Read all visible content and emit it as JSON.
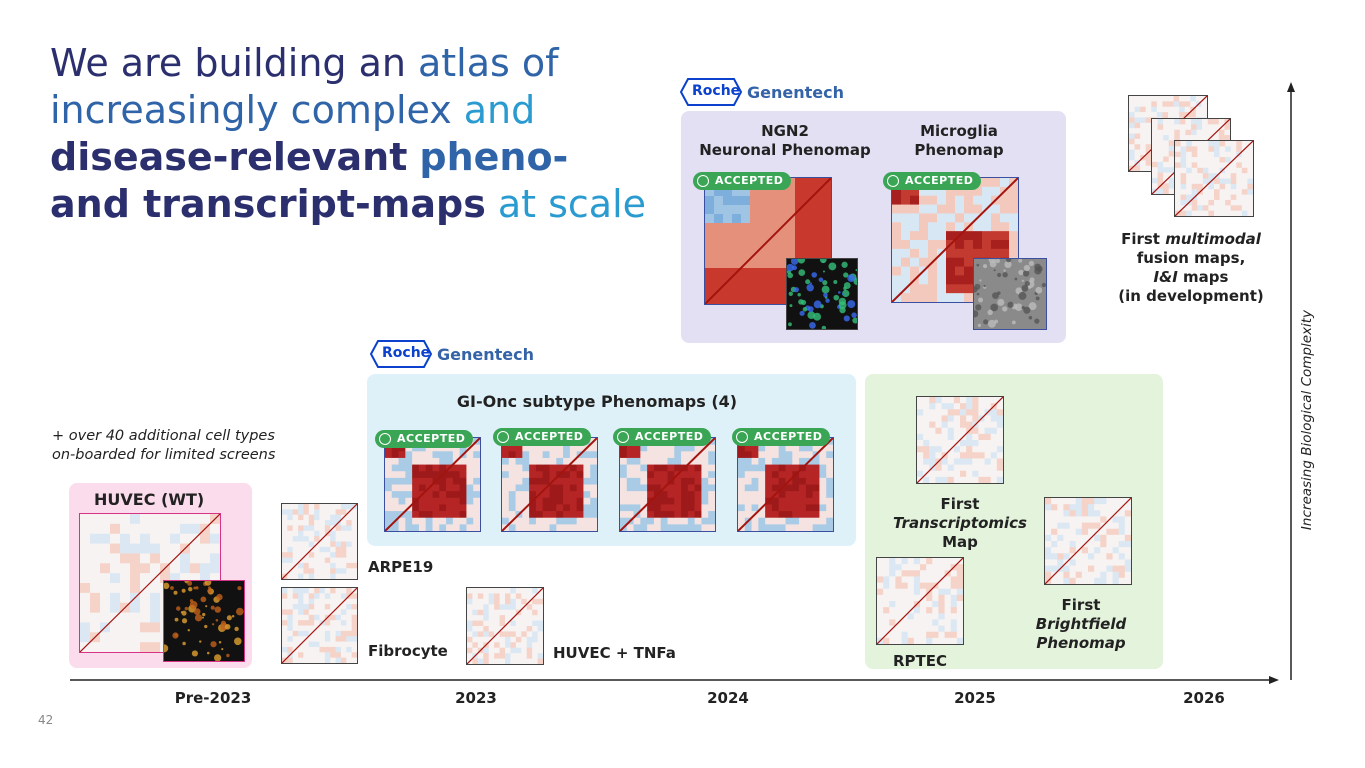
{
  "title": {
    "lines": [
      [
        "We are building an",
        "atlas of"
      ],
      [
        "increasingly complex",
        "and"
      ],
      [
        "disease-relevant",
        "pheno-"
      ],
      [
        "and transcript-maps",
        "at scale"
      ]
    ]
  },
  "note": [
    "+ over 40 additional cell types",
    "on-boarded for limited screens"
  ],
  "logos": [
    {
      "roche": "Roche",
      "genentech": "Genentech"
    },
    {
      "roche": "Roche",
      "genentech": "Genentech"
    }
  ],
  "huvec": {
    "label": "HUVEC (WT)"
  },
  "maps": {
    "arpe19": "ARPE19",
    "fibrocyte": "Fibrocyte",
    "huvec_tnfa": "HUVEC + TNFa"
  },
  "gi_onc": {
    "title": "GI-Onc subtype Phenomaps (4)",
    "badges": [
      "ACCEPTED",
      "ACCEPTED",
      "ACCEPTED",
      "ACCEPTED"
    ]
  },
  "neuro": {
    "ngn2": {
      "lines": [
        "NGN2",
        "Neuronal Phenomap"
      ],
      "badge": "ACCEPTED"
    },
    "microglia": {
      "lines": [
        "Microglia",
        "Phenomap"
      ],
      "badge": "ACCEPTED"
    }
  },
  "green": {
    "transcriptomics": [
      "First",
      "Transcriptomics",
      "Map"
    ],
    "rptec": "RPTEC",
    "brightfield": [
      "First",
      "Brightfield",
      "Phenomap"
    ]
  },
  "multimodal": {
    "lines": [
      [
        "First",
        "multimodal"
      ],
      [
        "fusion maps,"
      ],
      [
        "I&I",
        "maps"
      ],
      [
        "(in development)"
      ]
    ]
  },
  "timeline": {
    "labels": [
      "Pre-2023",
      "2023",
      "2024",
      "2025",
      "2026"
    ],
    "axis_label": "Increasing Biological Complexity"
  },
  "page_number": "42"
}
